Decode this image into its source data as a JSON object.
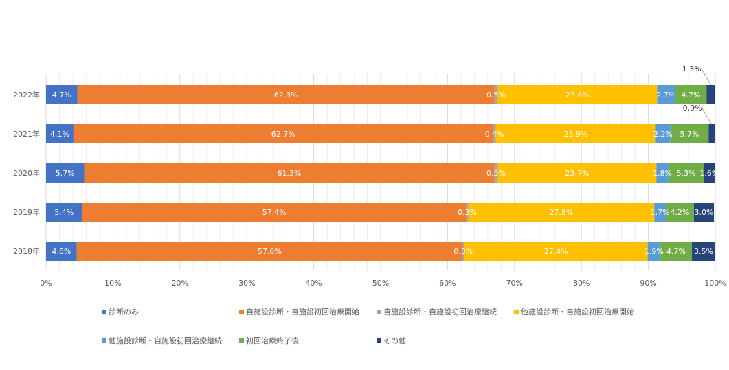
{
  "chart_data": {
    "type": "bar",
    "orientation": "horizontal",
    "stacked": "percent",
    "categories": [
      "2022年",
      "2021年",
      "2020年",
      "2019年",
      "2018年"
    ],
    "series": [
      {
        "name": "診断のみ",
        "color": "#4472C4",
        "values": [
          4.7,
          4.1,
          5.7,
          5.4,
          4.6
        ],
        "labels": [
          "4.7%",
          "4.1%",
          "5.7%",
          "5.4%",
          "4.6%"
        ]
      },
      {
        "name": "自施設診断・自施設初回治療開始",
        "color": "#ED7D31",
        "values": [
          62.3,
          62.7,
          61.3,
          57.4,
          57.6
        ],
        "labels": [
          "62.3%",
          "62.7%",
          "61.3%",
          "57.4%",
          "57.6%"
        ]
      },
      {
        "name": "自施設診断・自施設初回治療継続",
        "color": "#A5A5A5",
        "values": [
          0.5,
          0.4,
          0.5,
          0.3,
          0.3
        ],
        "labels": [
          "0.5%",
          "0.4%",
          "0.5%",
          "0.3%",
          "0.3%"
        ]
      },
      {
        "name": "他施設診断・自施設初回治療開始",
        "color": "#FFC000",
        "values": [
          23.8,
          23.9,
          23.7,
          27.8,
          27.4
        ],
        "labels": [
          "23.8%",
          "23.9%",
          "23.7%",
          "27.8%",
          "27.4%"
        ]
      },
      {
        "name": "他施設診断・自施設初回治療継続",
        "color": "#5B9BD5",
        "values": [
          2.7,
          2.2,
          1.8,
          1.7,
          1.9
        ],
        "labels": [
          "2.7%",
          "2.2%",
          "1.8%",
          "1.7%",
          "1.9%"
        ]
      },
      {
        "name": "初回治療終了後",
        "color": "#70AD47",
        "values": [
          4.7,
          5.7,
          5.3,
          4.2,
          4.7
        ],
        "labels": [
          "4.7%",
          "5.7%",
          "5.3%",
          "4.2%",
          "4.7%"
        ]
      },
      {
        "name": "その他",
        "color": "#264478",
        "values": [
          1.3,
          0.9,
          1.6,
          3.0,
          3.5
        ],
        "labels": [
          "1.3%",
          "0.9%",
          "1.6%",
          "3.0%",
          "3.5%"
        ]
      }
    ],
    "xlim": [
      0,
      100
    ],
    "x_ticks": [
      "0%",
      "10%",
      "20%",
      "30%",
      "40%",
      "50%",
      "60%",
      "70%",
      "80%",
      "90%",
      "100%"
    ],
    "grid": true,
    "legend_position": "bottom",
    "callouts": [
      {
        "category": "2022年",
        "series": "その他",
        "label": "1.3%"
      },
      {
        "category": "2021年",
        "series": "その他",
        "label": "0.9%"
      }
    ]
  }
}
